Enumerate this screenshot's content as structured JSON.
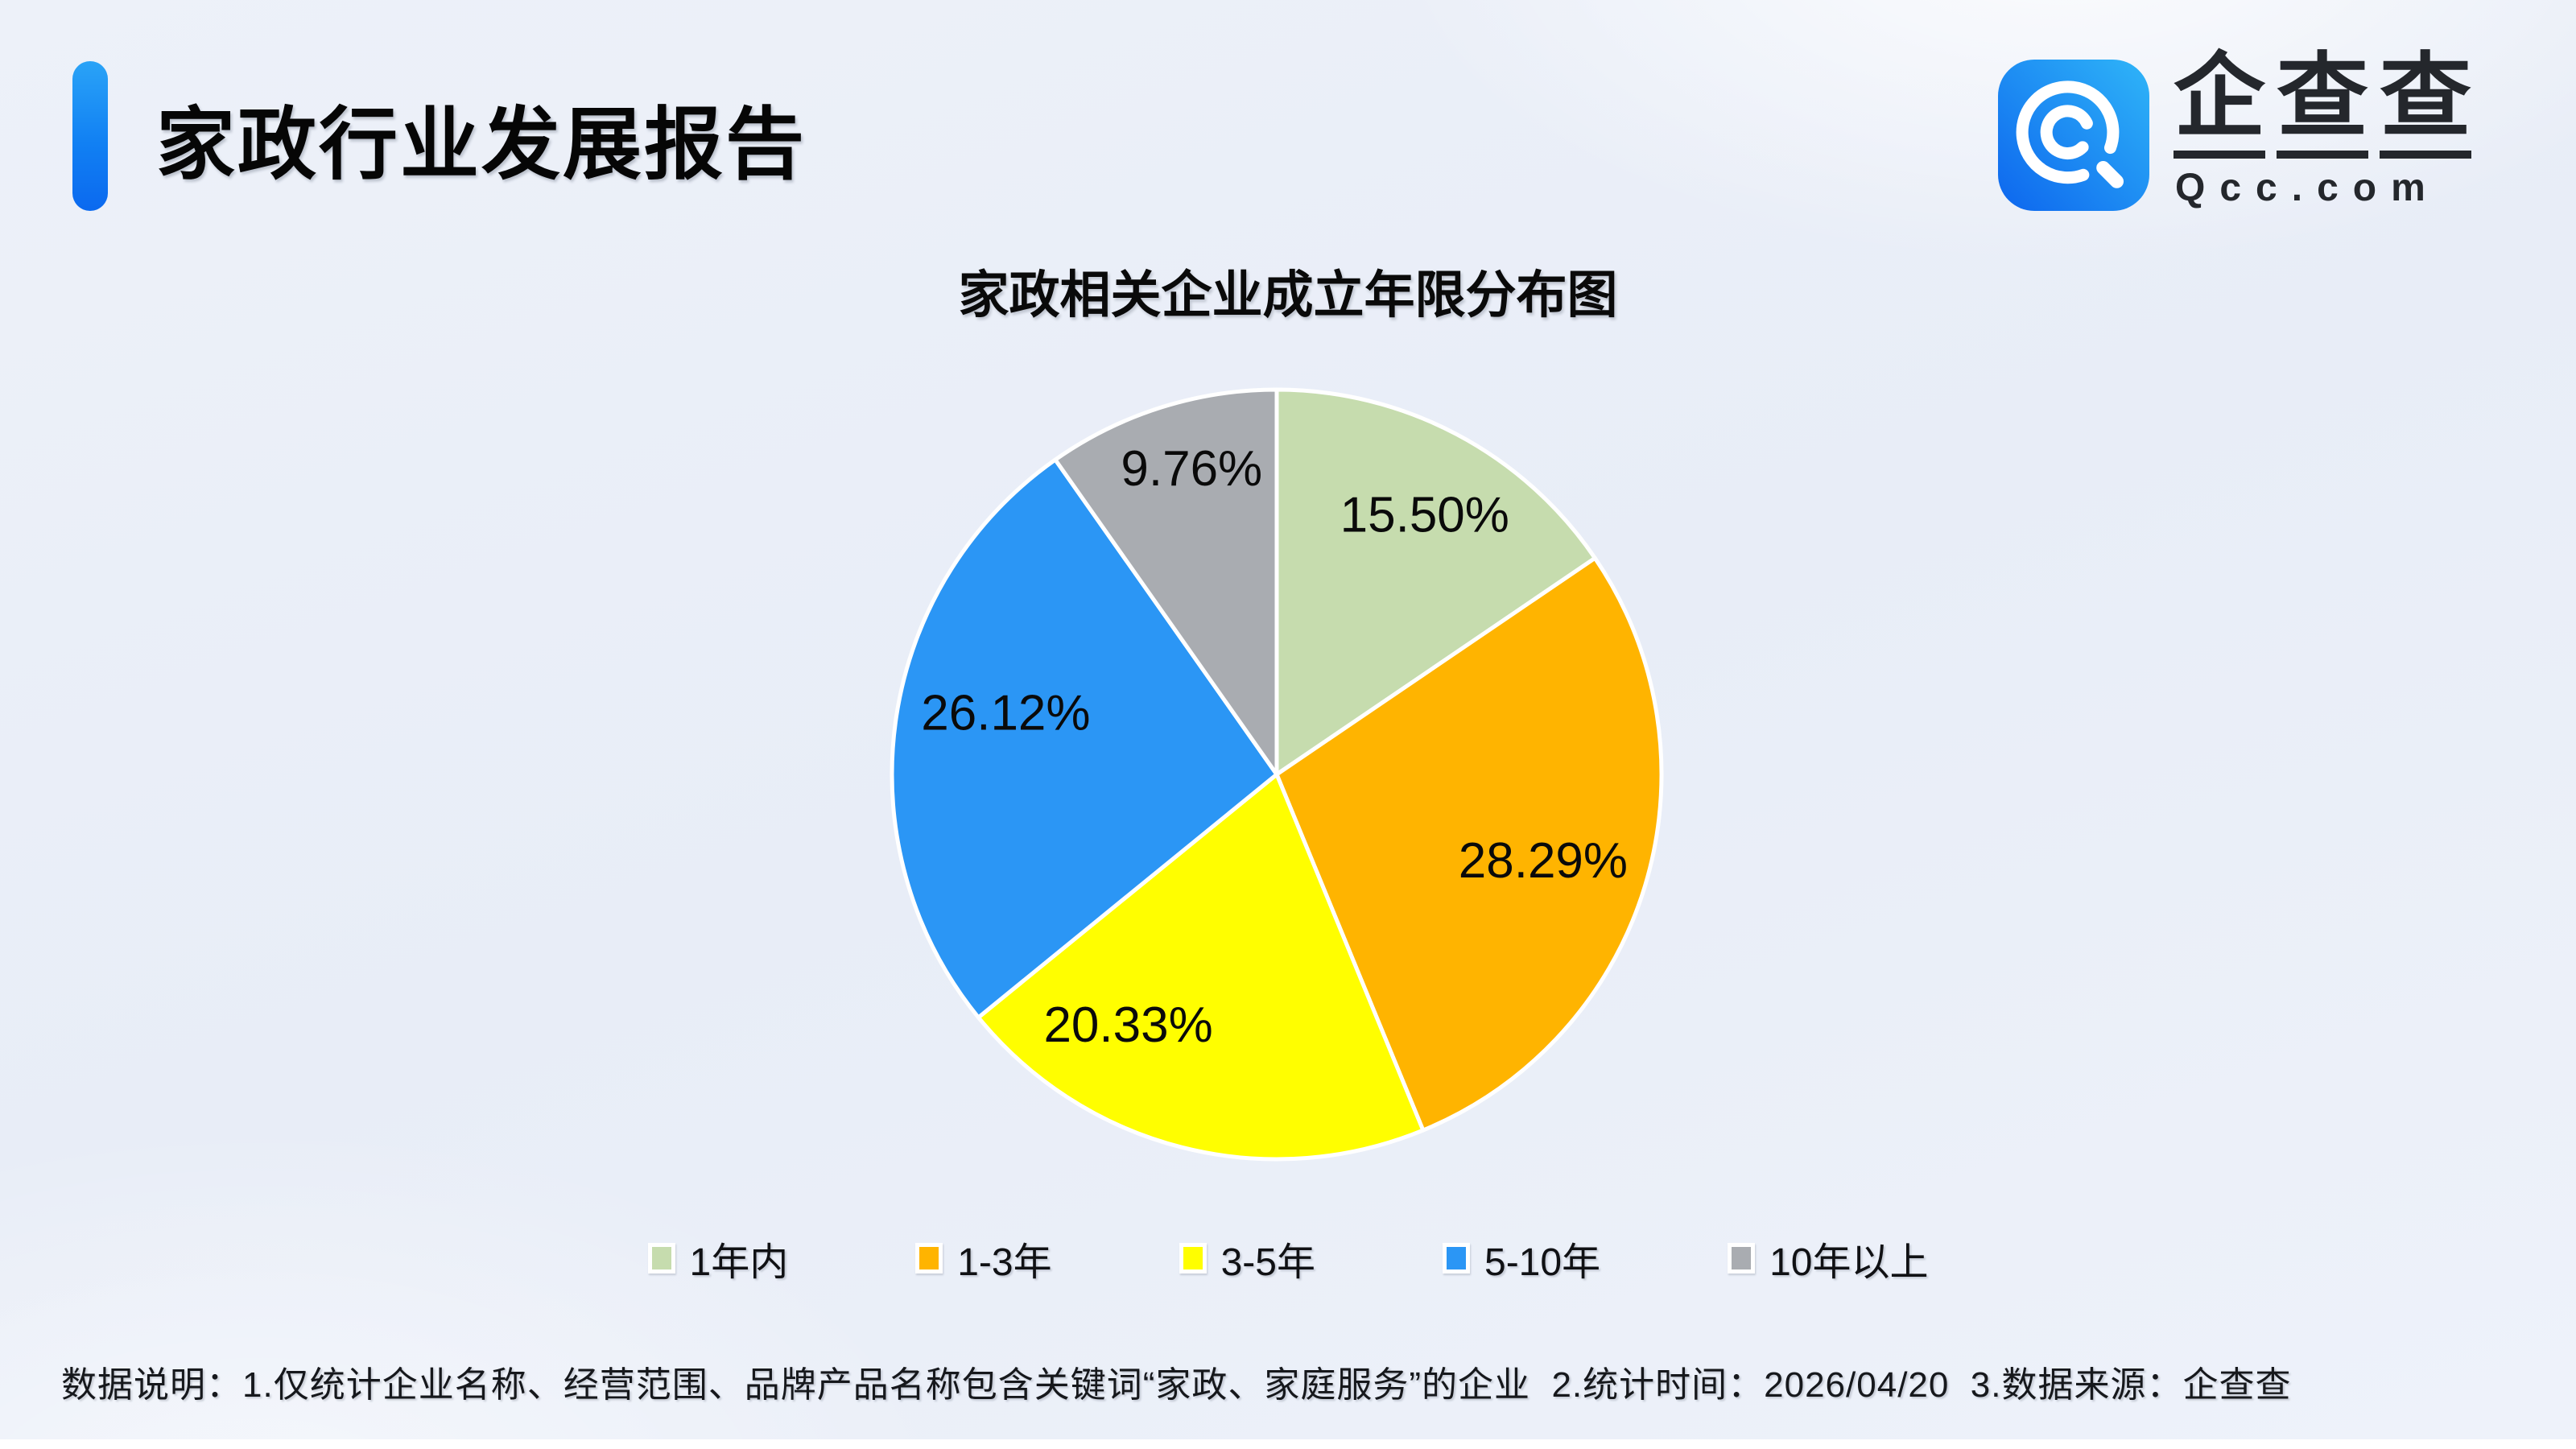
{
  "header": {
    "report_title": "家政行业发展报告",
    "logo": {
      "icon": "qcc-magnifier-icon",
      "brand_name": "企查查",
      "brand_url_text": "Qcc.com",
      "icon_blue_dark": "#0d66ee",
      "icon_blue_light": "#2fb5f8"
    }
  },
  "chart_data": {
    "type": "pie",
    "title": "家政相关企业成立年限分布图",
    "categories": [
      "1年内",
      "1-3年",
      "3-5年",
      "5-10年",
      "10年以上"
    ],
    "values": [
      15.5,
      28.29,
      20.33,
      26.12,
      9.76
    ],
    "labels": [
      "15.50%",
      "28.29%",
      "20.33%",
      "26.12%",
      "9.76%"
    ],
    "colors": [
      "#c6dcae",
      "#ffb400",
      "#fffe00",
      "#2b96f5",
      "#a9acb1"
    ],
    "start_angle_deg": 0,
    "direction": "clockwise",
    "legend_position": "bottom",
    "label_position": "inside"
  },
  "footer": {
    "note": "数据说明：1.仅统计企业名称、经营范围、品牌产品名称包含关键词“家政、家庭服务”的企业  2.统计时间：2026/04/20  3.数据来源：企查查"
  },
  "accent_colors": {
    "header_bar_top": "#2aa3f7",
    "header_bar_bottom": "#0b69ef",
    "background": "#ecf0f8"
  }
}
